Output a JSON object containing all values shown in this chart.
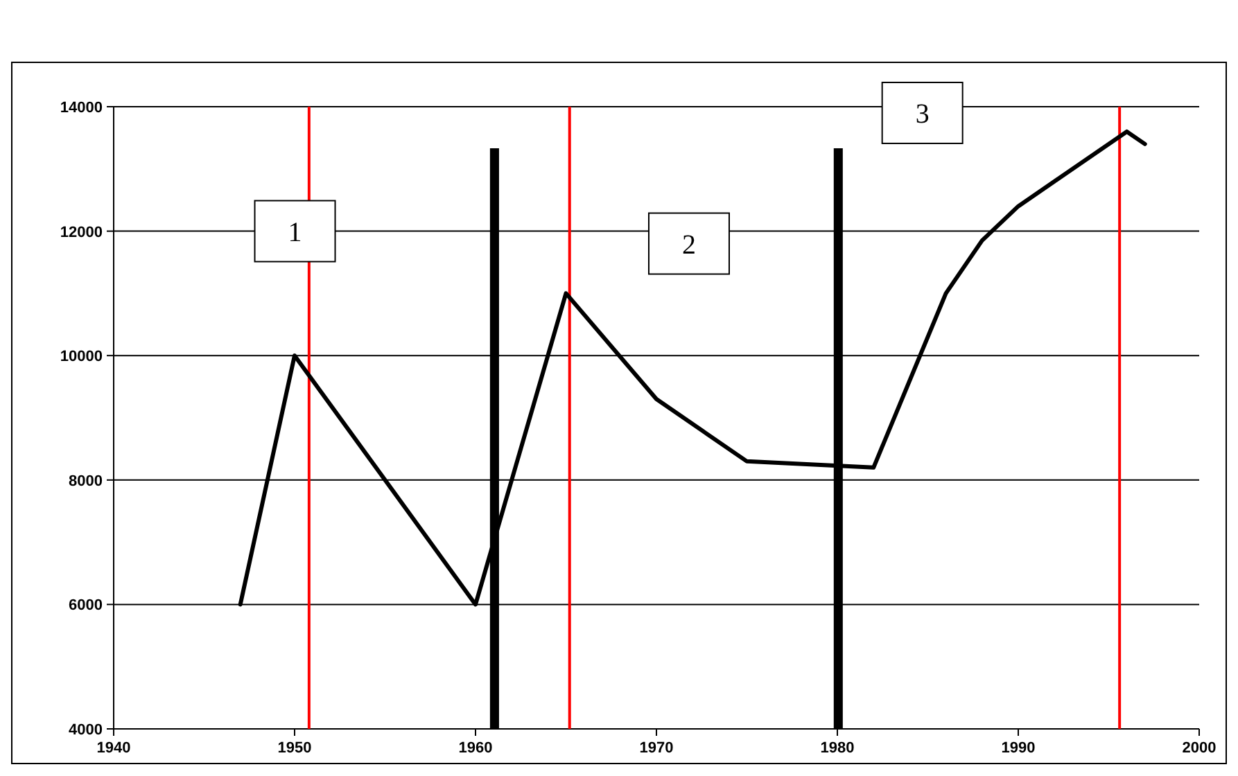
{
  "chart_data": {
    "type": "line",
    "x": [
      1947,
      1950,
      1960,
      1965,
      1970,
      1975,
      1982,
      1986,
      1988,
      1990,
      1992,
      1996,
      1997
    ],
    "series": [
      {
        "color": "#000000",
        "values": [
          6000,
          10000,
          6000,
          11000,
          9300,
          8300,
          8200,
          11000,
          11850,
          12400,
          12800,
          13600,
          13400
        ]
      }
    ],
    "xlim": [
      1940,
      2000
    ],
    "xticks": [
      1940,
      1950,
      1960,
      1970,
      1980,
      1990,
      2000
    ],
    "ylim": [
      4000,
      14000
    ],
    "yticks": [
      4000,
      6000,
      8000,
      10000,
      12000,
      14000
    ],
    "grid": "y",
    "marker": "none",
    "line_style": "solid",
    "ref_lines": [
      {
        "axis": "x",
        "value": 1950.8,
        "color": "#ff0000"
      },
      {
        "axis": "x",
        "value": 1965.2,
        "color": "#ff0000"
      },
      {
        "axis": "x",
        "value": 1995.6,
        "color": "#ff0000"
      }
    ],
    "bands": [
      {
        "axis": "x",
        "from": 1960.8,
        "to": 1961.3,
        "color": "#000000"
      },
      {
        "axis": "x",
        "from": 1979.8,
        "to": 1980.3,
        "color": "#000000"
      }
    ],
    "annotations": [
      "1",
      "2",
      "3"
    ]
  }
}
